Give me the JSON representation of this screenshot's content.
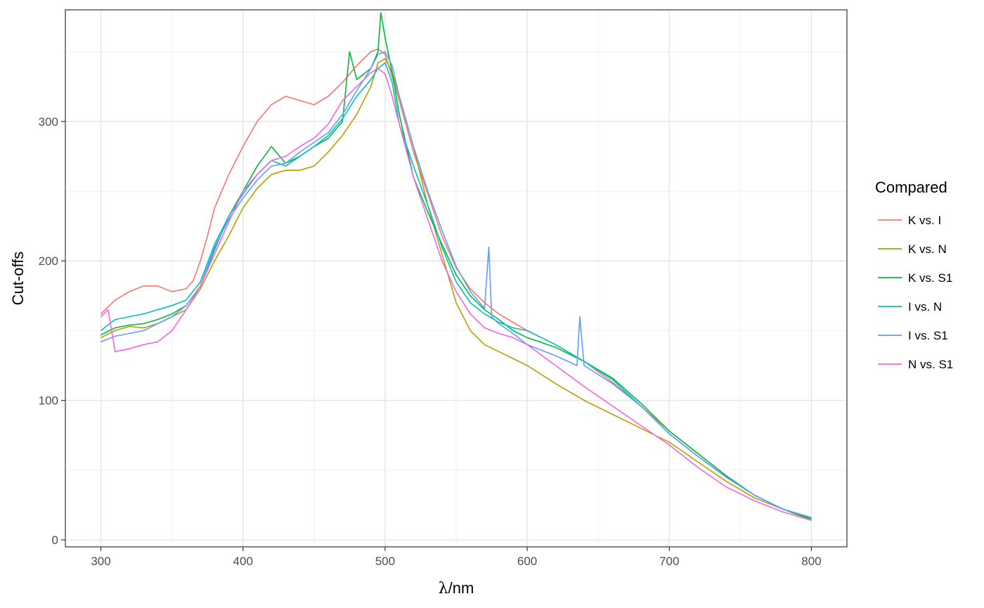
{
  "chart_data": {
    "type": "line",
    "title": "",
    "xlabel": "λ/nm",
    "ylabel": "Cut-offs",
    "xlim": [
      275,
      825
    ],
    "ylim": [
      -5,
      380
    ],
    "x_ticks": [
      300,
      400,
      500,
      600,
      700,
      800
    ],
    "y_ticks": [
      0,
      100,
      200,
      300
    ],
    "grid": true,
    "legend": {
      "title": "Compared",
      "placement": "right"
    },
    "series": [
      {
        "name": "K vs. I",
        "color": "#F8766D",
        "x": [
          300,
          310,
          320,
          330,
          340,
          350,
          360,
          365,
          370,
          375,
          380,
          390,
          400,
          410,
          420,
          430,
          440,
          450,
          460,
          470,
          480,
          490,
          495,
          500,
          505,
          510,
          520,
          530,
          540,
          550,
          560,
          570,
          580,
          590,
          600,
          620,
          640,
          660,
          680,
          700,
          720,
          740,
          760,
          780,
          800
        ],
        "y": [
          162,
          172,
          178,
          182,
          182,
          178,
          180,
          186,
          200,
          218,
          238,
          262,
          282,
          300,
          312,
          318,
          315,
          312,
          318,
          328,
          340,
          350,
          352,
          348,
          332,
          315,
          278,
          248,
          218,
          195,
          180,
          170,
          162,
          156,
          150,
          140,
          128,
          113,
          96,
          78,
          62,
          46,
          32,
          22,
          15
        ]
      },
      {
        "name": "K vs. N",
        "color": "#B79F00",
        "x": [
          300,
          310,
          320,
          330,
          340,
          350,
          360,
          370,
          380,
          390,
          400,
          410,
          420,
          430,
          440,
          450,
          460,
          470,
          480,
          490,
          495,
          500,
          505,
          510,
          520,
          530,
          540,
          550,
          560,
          570,
          580,
          590,
          600,
          620,
          640,
          660,
          680,
          700,
          720,
          740,
          760,
          780,
          800
        ],
        "y": [
          145,
          150,
          153,
          152,
          155,
          160,
          165,
          180,
          200,
          218,
          238,
          252,
          262,
          265,
          265,
          268,
          278,
          290,
          305,
          325,
          342,
          345,
          335,
          318,
          282,
          240,
          205,
          170,
          150,
          140,
          135,
          130,
          125,
          112,
          100,
          90,
          80,
          70,
          56,
          42,
          30,
          22,
          14
        ]
      },
      {
        "name": "K vs. S1",
        "color": "#00BA38",
        "x": [
          300,
          310,
          320,
          330,
          340,
          350,
          360,
          370,
          380,
          390,
          400,
          410,
          420,
          430,
          440,
          450,
          460,
          470,
          475,
          480,
          490,
          495,
          497,
          500,
          505,
          510,
          520,
          530,
          540,
          550,
          560,
          570,
          580,
          590,
          600,
          620,
          640,
          660,
          680,
          700,
          720,
          740,
          760,
          780,
          800
        ],
        "y": [
          147,
          152,
          154,
          155,
          158,
          162,
          168,
          182,
          208,
          232,
          250,
          268,
          282,
          270,
          275,
          282,
          288,
          300,
          350,
          330,
          338,
          350,
          378,
          360,
          335,
          305,
          260,
          235,
          212,
          190,
          175,
          165,
          158,
          150,
          145,
          138,
          128,
          116,
          98,
          78,
          62,
          46,
          32,
          22,
          15
        ]
      },
      {
        "name": "I vs. N",
        "color": "#00BFC4",
        "x": [
          300,
          310,
          320,
          330,
          340,
          350,
          360,
          370,
          380,
          390,
          400,
          410,
          420,
          430,
          440,
          450,
          460,
          470,
          480,
          490,
          495,
          500,
          505,
          510,
          520,
          530,
          540,
          550,
          560,
          570,
          580,
          590,
          600,
          620,
          640,
          660,
          680,
          700,
          720,
          740,
          760,
          780,
          800
        ],
        "y": [
          150,
          158,
          160,
          162,
          165,
          168,
          172,
          185,
          212,
          232,
          248,
          262,
          272,
          268,
          275,
          282,
          290,
          302,
          318,
          330,
          338,
          342,
          328,
          298,
          268,
          240,
          210,
          185,
          170,
          162,
          156,
          152,
          150,
          140,
          128,
          115,
          96,
          76,
          60,
          45,
          32,
          22,
          16
        ]
      },
      {
        "name": "I vs. S1",
        "color": "#619CFF",
        "x": [
          300,
          310,
          320,
          330,
          340,
          350,
          360,
          370,
          380,
          390,
          400,
          410,
          420,
          430,
          440,
          450,
          460,
          470,
          480,
          490,
          495,
          500,
          505,
          510,
          520,
          530,
          540,
          550,
          560,
          570,
          573,
          575,
          580,
          590,
          600,
          620,
          635,
          637,
          640,
          660,
          680,
          700,
          720,
          740,
          760,
          780,
          800
        ],
        "y": [
          142,
          146,
          148,
          150,
          155,
          160,
          168,
          182,
          210,
          230,
          245,
          258,
          268,
          270,
          278,
          285,
          292,
          305,
          322,
          338,
          348,
          350,
          340,
          318,
          282,
          250,
          222,
          196,
          178,
          166,
          210,
          160,
          155,
          148,
          140,
          132,
          125,
          160,
          125,
          112,
          96,
          76,
          60,
          45,
          32,
          22,
          16
        ]
      },
      {
        "name": "N vs. S1",
        "color": "#F564E3",
        "x": [
          300,
          305,
          310,
          320,
          330,
          340,
          350,
          360,
          370,
          380,
          390,
          400,
          410,
          420,
          430,
          440,
          450,
          460,
          470,
          480,
          490,
          495,
          500,
          505,
          510,
          520,
          530,
          540,
          550,
          560,
          570,
          580,
          590,
          600,
          620,
          640,
          660,
          680,
          700,
          720,
          740,
          760,
          780,
          800
        ],
        "y": [
          160,
          165,
          135,
          137,
          140,
          142,
          150,
          165,
          182,
          205,
          228,
          250,
          262,
          272,
          275,
          282,
          288,
          298,
          315,
          325,
          335,
          338,
          334,
          318,
          298,
          260,
          230,
          200,
          178,
          162,
          152,
          148,
          145,
          140,
          125,
          110,
          96,
          82,
          68,
          52,
          38,
          28,
          20,
          14
        ]
      }
    ]
  }
}
